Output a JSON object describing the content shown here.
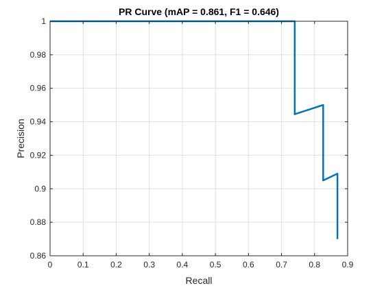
{
  "chart_data": {
    "type": "line",
    "title": "PR Curve (mAP = 0.861, F1 = 0.646)",
    "xlabel": "Recall",
    "ylabel": "Precision",
    "xlim": [
      0,
      0.9
    ],
    "ylim": [
      0.86,
      1.0
    ],
    "xticks": [
      "0",
      "0.1",
      "0.2",
      "0.3",
      "0.4",
      "0.5",
      "0.6",
      "0.7",
      "0.8",
      "0.9"
    ],
    "yticks": [
      "0.86",
      "0.88",
      "0.9",
      "0.92",
      "0.94",
      "0.96",
      "0.98",
      "1"
    ],
    "grid": true,
    "series": [
      {
        "color": "#0072BD",
        "points": [
          [
            0.0,
            1.0
          ],
          [
            0.74,
            1.0
          ],
          [
            0.74,
            0.9445
          ],
          [
            0.826,
            0.95
          ],
          [
            0.826,
            0.905
          ],
          [
            0.869,
            0.909
          ],
          [
            0.869,
            0.87
          ]
        ]
      }
    ]
  }
}
